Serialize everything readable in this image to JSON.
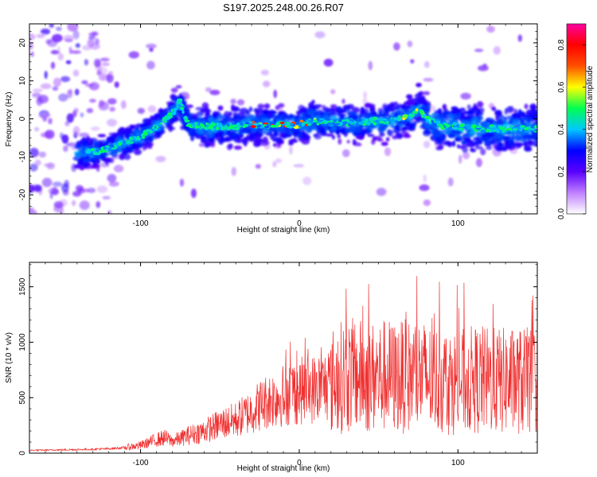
{
  "title": "S197.2025.248.00.26.R07",
  "chart_data": [
    {
      "type": "heatmap",
      "title": "",
      "xlabel": "Height of straight line (km)",
      "ylabel": "Frequency (Hz)",
      "xlim": [
        -170,
        150
      ],
      "ylim": [
        -25,
        25
      ],
      "xticks": [
        -100,
        0,
        100
      ],
      "xtick_labels": [
        "-100",
        "0",
        "100"
      ],
      "yticks": [
        -20,
        -10,
        0,
        10,
        20
      ],
      "ytick_labels": [
        "-20",
        "-10",
        "0",
        "10",
        "20"
      ],
      "ridge": {
        "x": [
          -135,
          -125,
          -115,
          -105,
          -95,
          -88,
          -80,
          -75,
          -70,
          -60,
          -50,
          -40,
          -30,
          -20,
          -10,
          0,
          10,
          20,
          30,
          40,
          50,
          60,
          70,
          75,
          80,
          90,
          100,
          110,
          120,
          130,
          140,
          148
        ],
        "freq": [
          -9,
          -8.5,
          -7,
          -5.5,
          -3.5,
          -1.5,
          1.5,
          4.5,
          -1.5,
          -2,
          -2,
          -2,
          -1.5,
          -1.5,
          -1.5,
          -1.5,
          -0.5,
          -1,
          -1,
          -0.8,
          -0.5,
          -0.5,
          0.5,
          3,
          0,
          -2,
          -2,
          -2.5,
          -2.5,
          -2.5,
          -2.5,
          -2.5
        ]
      },
      "colorbar": {
        "label": "Normalized spectral amplitude",
        "range": [
          0.0,
          0.9
        ],
        "ticks": [
          0.0,
          0.2,
          0.4,
          0.6,
          0.8
        ],
        "tick_labels": [
          "0.0",
          "0.2",
          "0.4",
          "0.6",
          "0.8"
        ],
        "colors": [
          "#ffffff",
          "#c080ff",
          "#5a00ff",
          "#0000ff",
          "#00c8ff",
          "#00ff50",
          "#ffff00",
          "#ff5000",
          "#ff0000",
          "#ff00a0"
        ]
      }
    },
    {
      "type": "line",
      "title": "",
      "xlabel": "Height of straight line (km)",
      "ylabel": "SNR (10 * v/v)",
      "xlim": [
        -170,
        150
      ],
      "ylim": [
        0,
        1720
      ],
      "xticks": [
        -100,
        0,
        100
      ],
      "xtick_labels": [
        "-100",
        "0",
        "100"
      ],
      "yticks": [
        0,
        500,
        1000,
        1500
      ],
      "ytick_labels": [
        "0",
        "500",
        "1000",
        "1500"
      ],
      "series": [
        {
          "name": "SNR",
          "color": "#f03030",
          "x": [
            -170,
            -150,
            -130,
            -120,
            -110,
            -100,
            -95,
            -90,
            -85,
            -80,
            -75,
            -70,
            -65,
            -60,
            -55,
            -50,
            -45,
            -40,
            -35,
            -30,
            -25,
            -20,
            -15,
            -10,
            -5,
            0,
            5,
            10,
            15,
            20,
            25,
            30,
            35,
            40,
            45,
            50,
            55,
            60,
            65,
            70,
            75,
            80,
            85,
            90,
            95,
            100,
            105,
            110,
            115,
            120,
            125,
            130,
            135,
            140,
            145,
            150
          ],
          "values": [
            25,
            30,
            35,
            40,
            50,
            70,
            95,
            120,
            140,
            110,
            130,
            160,
            180,
            200,
            230,
            260,
            280,
            300,
            340,
            380,
            430,
            470,
            500,
            520,
            550,
            560,
            570,
            580,
            600,
            640,
            680,
            700,
            700,
            690,
            680,
            690,
            700,
            680,
            690,
            690,
            700,
            680,
            660,
            650,
            640,
            640,
            650,
            660,
            660,
            650,
            650,
            650,
            650,
            650,
            650,
            660
          ]
        }
      ]
    }
  ]
}
